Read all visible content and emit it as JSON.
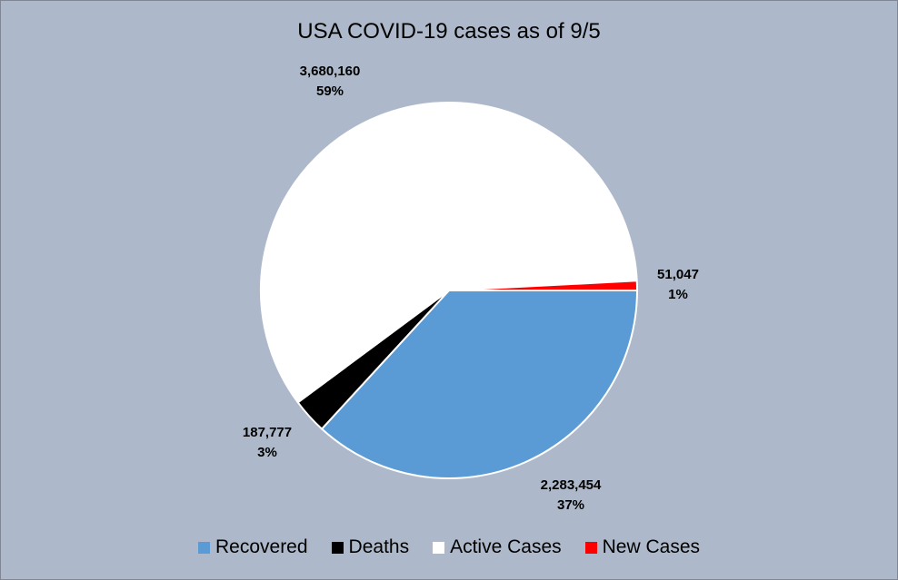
{
  "chart_data": {
    "type": "pie",
    "title": "USA COVID-19 cases as of 9/5",
    "legend_position": "bottom",
    "slices": [
      {
        "name": "Recovered",
        "value": 2283454,
        "value_label": "2,283,454",
        "percent_label": "37%",
        "color": "#5b9bd5"
      },
      {
        "name": "Deaths",
        "value": 187777,
        "value_label": "187,777",
        "percent_label": "3%",
        "color": "#000000"
      },
      {
        "name": "Active Cases",
        "value": 3680160,
        "value_label": "3,680,160",
        "percent_label": "59%",
        "color": "#ffffff"
      },
      {
        "name": "New Cases",
        "value": 51047,
        "value_label": "51,047",
        "percent_label": "1%",
        "color": "#ff0000"
      }
    ]
  },
  "colors": {
    "background": "#adb9ca",
    "border": "#7f8795",
    "slice_edge": "#ffffff"
  }
}
